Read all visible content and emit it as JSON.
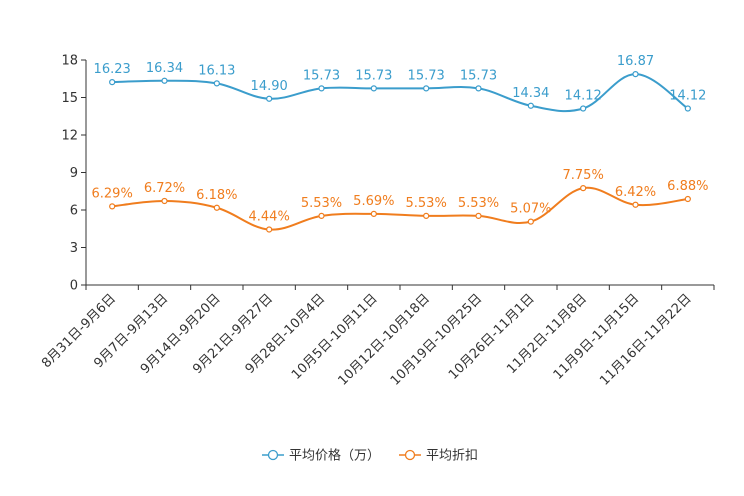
{
  "chart_data": {
    "type": "line",
    "title": "",
    "xlabel": "",
    "ylabel": "",
    "ylim": [
      0,
      18
    ],
    "yticks": [
      0,
      3,
      6,
      9,
      12,
      15,
      18
    ],
    "categories": [
      "8月31日-9月6日",
      "9月7日-9月13日",
      "9月14日-9月20日",
      "9月21日-9月27日",
      "9月28日-10月4日",
      "10月5日-10月11日",
      "10月12日-10月18日",
      "10月19日-10月25日",
      "10月26日-11月1日",
      "11月2日-11月8日",
      "11月9日-11月15日",
      "11月16日-11月22日"
    ],
    "legend_position": "bottom",
    "series": [
      {
        "name": "平均价格（万）",
        "color": "#3b9dcc",
        "values": [
          16.23,
          16.34,
          16.13,
          14.9,
          15.73,
          15.73,
          15.73,
          15.73,
          14.34,
          14.12,
          16.87,
          14.12
        ],
        "labels": [
          "16.23",
          "16.34",
          "16.13",
          "14.90",
          "15.73",
          "15.73",
          "15.73",
          "15.73",
          "14.34",
          "14.12",
          "16.87",
          "14.12"
        ]
      },
      {
        "name": "平均折扣",
        "color": "#f07d1e",
        "values": [
          6.29,
          6.72,
          6.18,
          4.44,
          5.53,
          5.69,
          5.53,
          5.53,
          5.07,
          7.75,
          6.42,
          6.88
        ],
        "labels": [
          "6.29%",
          "6.72%",
          "6.18%",
          "4.44%",
          "5.53%",
          "5.69%",
          "5.53%",
          "5.53%",
          "5.07%",
          "7.75%",
          "6.42%",
          "6.88%"
        ]
      }
    ]
  }
}
